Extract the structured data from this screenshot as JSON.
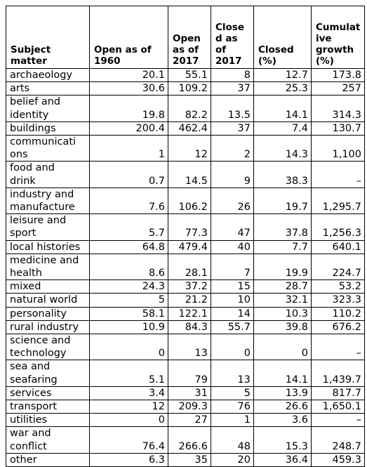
{
  "headers": [
    "Subject matter",
    "Open as of 1960",
    "Open as of 2017",
    "Closed as of 2017",
    "Closed (%)",
    "Cumulative growth (%)"
  ],
  "header_lines": [
    [
      "Subject",
      "matter"
    ],
    [
      "Open as of",
      "1960"
    ],
    [
      "Open",
      "as of",
      "2017"
    ],
    [
      "Close",
      "d as",
      "of",
      "2017"
    ],
    [
      "Closed",
      "(%)"
    ],
    [
      "Cumulat",
      "ive",
      "growth",
      "(%)"
    ]
  ],
  "rows": [
    {
      "lines": [
        "archaeology"
      ],
      "cells": [
        "20.1",
        "55.1",
        "8",
        "12.7",
        "173.8"
      ]
    },
    {
      "lines": [
        "arts"
      ],
      "cells": [
        "30.6",
        "109.2",
        "37",
        "25.3",
        "257"
      ]
    },
    {
      "lines": [
        "belief and",
        "identity"
      ],
      "cells": [
        "19.8",
        "82.2",
        "13.5",
        "14.1",
        "314.3"
      ]
    },
    {
      "lines": [
        "buildings"
      ],
      "cells": [
        "200.4",
        "462.4",
        "37",
        "7.4",
        "130.7"
      ]
    },
    {
      "lines": [
        "communicati",
        "ons"
      ],
      "cells": [
        "1",
        "12",
        "2",
        "14.3",
        "1,100"
      ]
    },
    {
      "lines": [
        "food and",
        "drink"
      ],
      "cells": [
        "0.7",
        "14.5",
        "9",
        "38.3",
        "–"
      ]
    },
    {
      "lines": [
        "industry and",
        "manufacture"
      ],
      "cells": [
        "7.6",
        "106.2",
        "26",
        "19.7",
        "1,295.7"
      ]
    },
    {
      "lines": [
        "leisure and",
        "sport"
      ],
      "cells": [
        "5.7",
        "77.3",
        "47",
        "37.8",
        "1,256.3"
      ]
    },
    {
      "lines": [
        "local histories"
      ],
      "cells": [
        "64.8",
        "479.4",
        "40",
        "7.7",
        "640.1"
      ]
    },
    {
      "lines": [
        "medicine and",
        "health"
      ],
      "cells": [
        "8.6",
        "28.1",
        "7",
        "19.9",
        "224.7"
      ]
    },
    {
      "lines": [
        "mixed"
      ],
      "cells": [
        "24.3",
        "37.2",
        "15",
        "28.7",
        "53.2"
      ]
    },
    {
      "lines": [
        "natural world"
      ],
      "cells": [
        "5",
        "21.2",
        "10",
        "32.1",
        "323.3"
      ]
    },
    {
      "lines": [
        "personality"
      ],
      "cells": [
        "58.1",
        "122.1",
        "14",
        "10.3",
        "110.2"
      ]
    },
    {
      "lines": [
        "rural industry"
      ],
      "cells": [
        "10.9",
        "84.3",
        "55.7",
        "39.8",
        "676.2"
      ]
    },
    {
      "lines": [
        "science and",
        "technology"
      ],
      "cells": [
        "0",
        "13",
        "0",
        "0",
        "–"
      ]
    },
    {
      "lines": [
        "sea and",
        "seafaring"
      ],
      "cells": [
        "5.1",
        "79",
        "13",
        "14.1",
        "1,439.7"
      ]
    },
    {
      "lines": [
        "services"
      ],
      "cells": [
        "3.4",
        "31",
        "5",
        "13.9",
        "817.7"
      ]
    },
    {
      "lines": [
        "transport"
      ],
      "cells": [
        "12",
        "209.3",
        "76",
        "26.6",
        "1,650.1"
      ]
    },
    {
      "lines": [
        "utilities"
      ],
      "cells": [
        "0",
        "27",
        "1",
        "3.6",
        "–"
      ]
    },
    {
      "lines": [
        "war and",
        "conflict"
      ],
      "cells": [
        "76.4",
        "266.6",
        "48",
        "15.3",
        "248.7"
      ]
    },
    {
      "lines": [
        "other"
      ],
      "cells": [
        "6.3",
        "35",
        "20",
        "36.4",
        "459.3"
      ]
    }
  ]
}
